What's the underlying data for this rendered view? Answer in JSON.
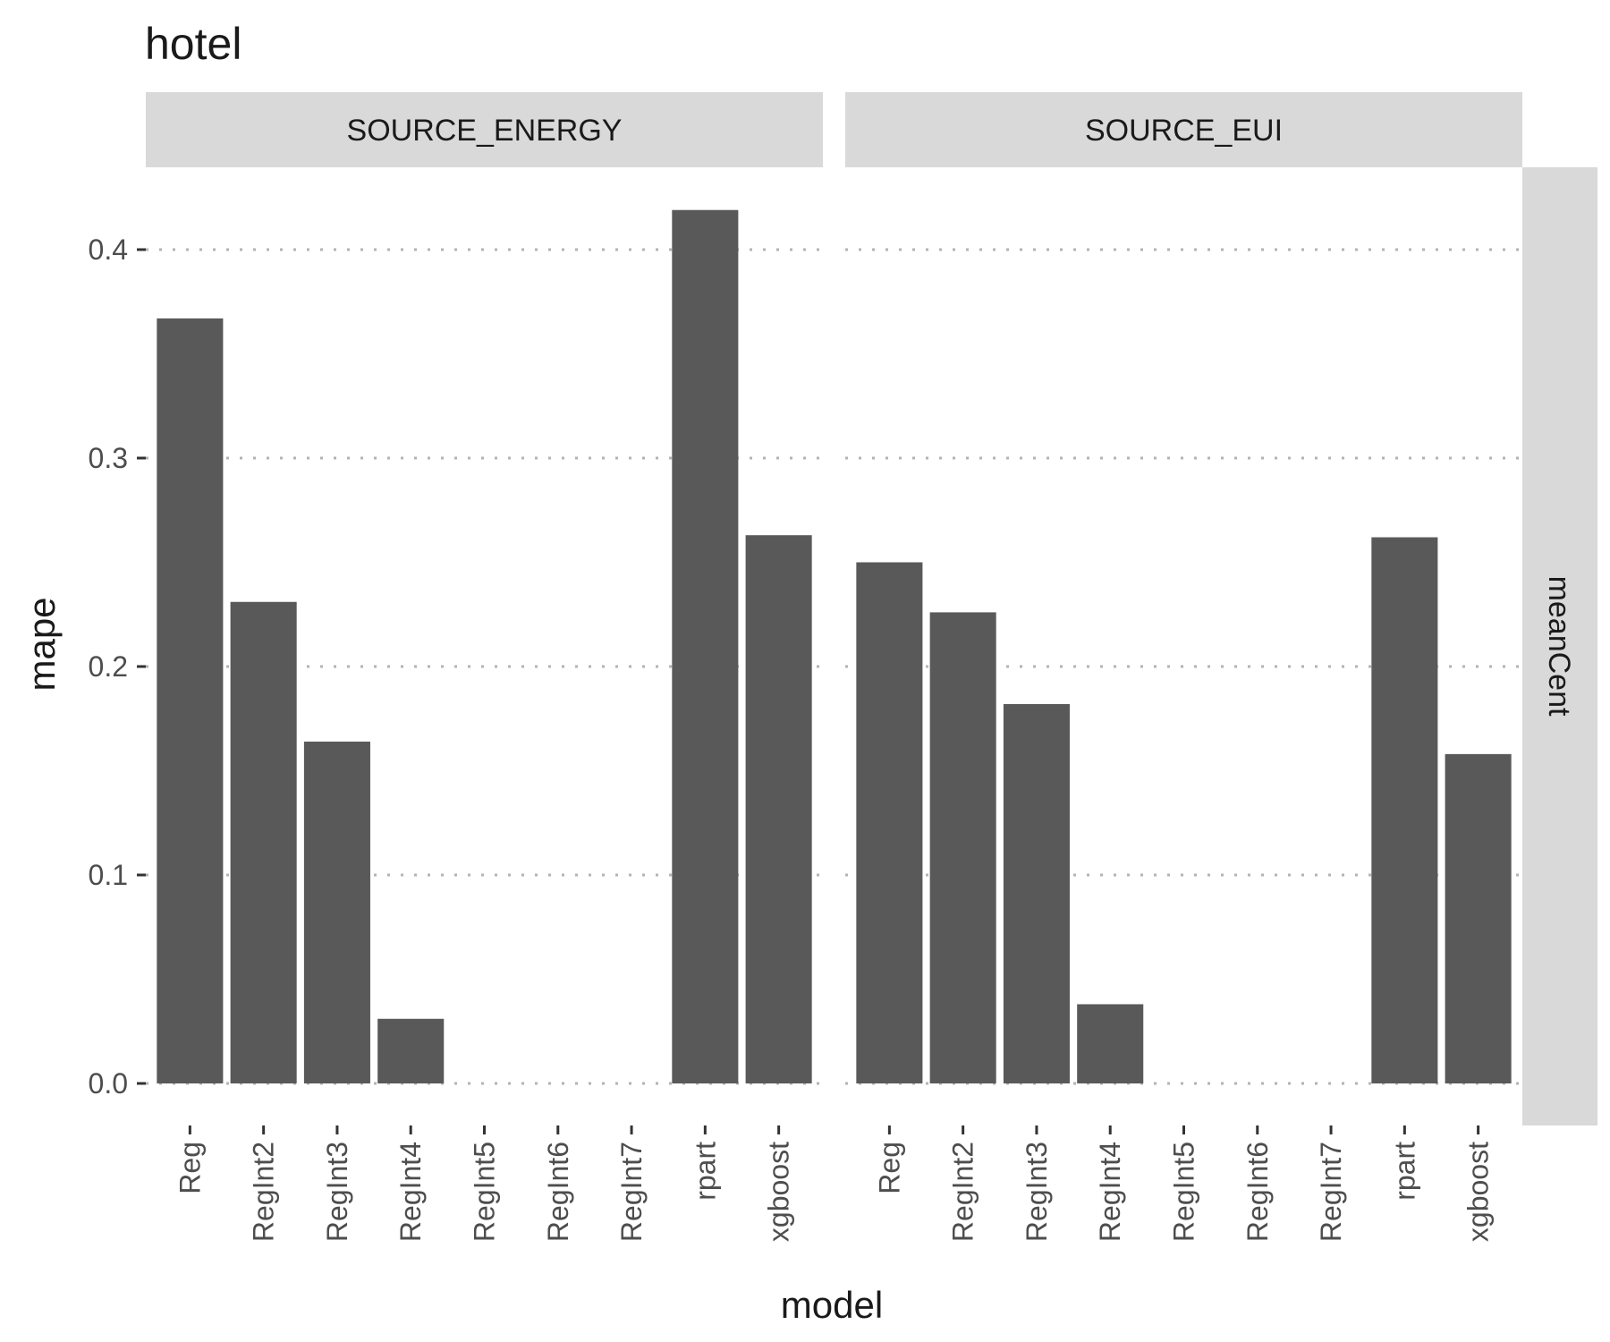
{
  "chart_data": {
    "type": "bar",
    "title": "hotel",
    "xlabel": "model",
    "ylabel": "mape",
    "ylim": [
      0,
      0.4
    ],
    "yticks": [
      "0.0",
      "0.1",
      "0.2",
      "0.3",
      "0.4"
    ],
    "categories": [
      "Reg",
      "RegInt2",
      "RegInt3",
      "RegInt4",
      "RegInt5",
      "RegInt6",
      "RegInt7",
      "rpart",
      "xgboost"
    ],
    "row_facet": "meanCent",
    "grid": "dotted horizontal major",
    "bar_color": "#595959",
    "facets": [
      {
        "name": "SOURCE_ENERGY",
        "values": [
          0.367,
          0.231,
          0.164,
          0.031,
          null,
          null,
          null,
          0.419,
          0.263
        ]
      },
      {
        "name": "SOURCE_EUI",
        "values": [
          0.25,
          0.226,
          0.182,
          0.038,
          null,
          null,
          null,
          0.262,
          0.158
        ]
      }
    ]
  }
}
